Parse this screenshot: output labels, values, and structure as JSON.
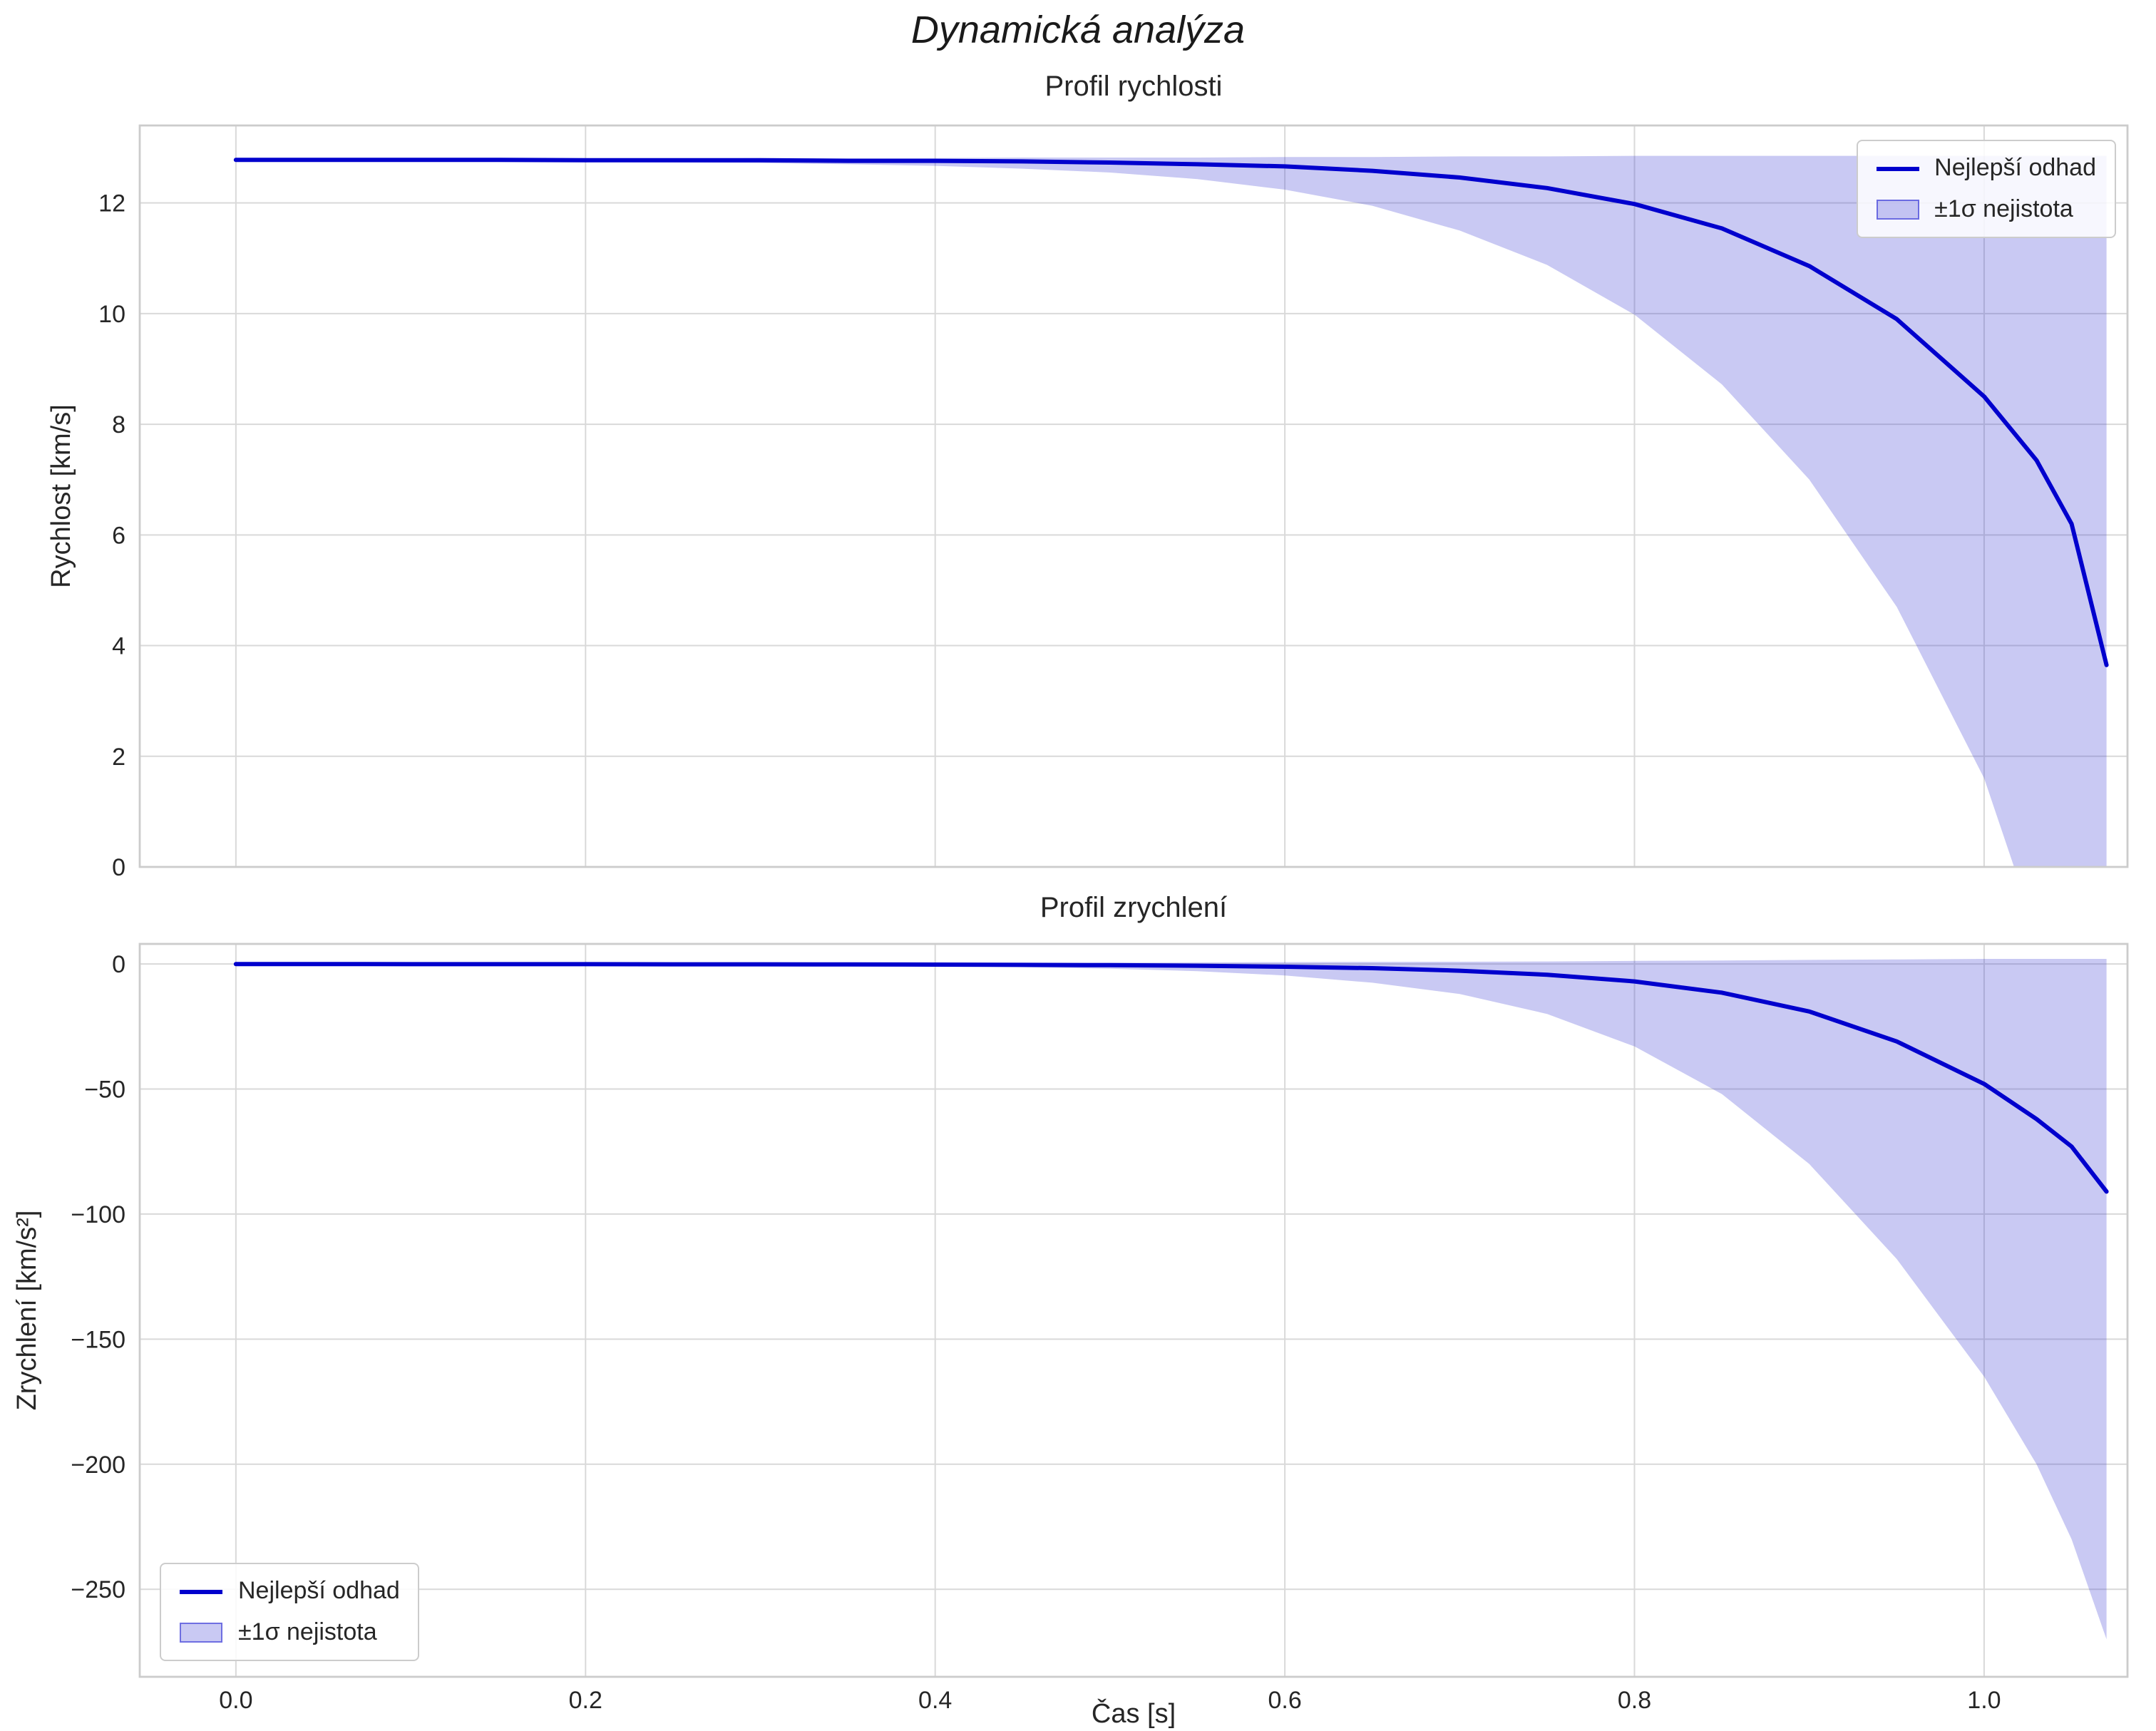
{
  "figure": {
    "title": "Dynamická analýza",
    "xlabel": "Čas [s]"
  },
  "colors": {
    "line": "#0000cd",
    "band": "#3d3dd5",
    "grid": "#d9d9d9",
    "frame": "#cccccc",
    "text": "#262626"
  },
  "chart_data": [
    {
      "type": "line",
      "title": "Profil rychlosti",
      "ylabel": "Rychlost [km/s]",
      "xlabel": "",
      "x": [
        0,
        0.05,
        0.1,
        0.15,
        0.2,
        0.25,
        0.3,
        0.35,
        0.4,
        0.45,
        0.5,
        0.55,
        0.6,
        0.65,
        0.7,
        0.75,
        0.8,
        0.85,
        0.9,
        0.95,
        1.0,
        1.03,
        1.05,
        1.07
      ],
      "series": [
        {
          "name": "Nejlepší odhad",
          "values": [
            12.78,
            12.78,
            12.78,
            12.78,
            12.77,
            12.77,
            12.77,
            12.76,
            12.76,
            12.75,
            12.73,
            12.7,
            12.66,
            12.58,
            12.46,
            12.27,
            11.98,
            11.54,
            10.86,
            9.9,
            8.5,
            7.35,
            6.2,
            3.65
          ]
        }
      ],
      "band": {
        "name": "±1σ nejistota",
        "upper": [
          12.8,
          12.8,
          12.8,
          12.8,
          12.8,
          12.8,
          12.81,
          12.81,
          12.81,
          12.82,
          12.82,
          12.82,
          12.83,
          12.83,
          12.84,
          12.84,
          12.85,
          12.85,
          12.85,
          12.85,
          12.85,
          12.85,
          12.85,
          12.85
        ],
        "lower": [
          12.76,
          12.76,
          12.75,
          12.75,
          12.74,
          12.73,
          12.72,
          12.7,
          12.67,
          12.62,
          12.55,
          12.43,
          12.24,
          11.95,
          11.5,
          10.88,
          9.98,
          8.72,
          7.0,
          4.7,
          1.6,
          -1.2,
          -3.2,
          -6.0
        ]
      },
      "xlim": [
        -0.055,
        1.082
      ],
      "ylim": [
        0,
        13.4
      ],
      "xticks": [
        0.0,
        0.2,
        0.4,
        0.6,
        0.8,
        1.0
      ],
      "xtick_labels": [
        "0.0",
        "0.2",
        "0.4",
        "0.6",
        "0.8",
        "1.0"
      ],
      "show_xticklabels": false,
      "yticks": [
        0,
        2,
        4,
        6,
        8,
        10,
        12
      ],
      "ytick_labels": [
        "0",
        "2",
        "4",
        "6",
        "8",
        "10",
        "12"
      ],
      "grid": true,
      "line_color": "#0000cd",
      "band_color": "#3d3dd5",
      "band_alpha": 0.28,
      "legend": {
        "position": "upper right",
        "items": [
          {
            "type": "line",
            "label": "Nejlepší odhad"
          },
          {
            "type": "patch",
            "label": "±1σ nejistota"
          }
        ]
      }
    },
    {
      "type": "line",
      "title": "Profil zrychlení",
      "ylabel": "Zrychlení [km/s²]",
      "xlabel": "Čas [s]",
      "x": [
        0,
        0.05,
        0.1,
        0.15,
        0.2,
        0.25,
        0.3,
        0.35,
        0.4,
        0.45,
        0.5,
        0.55,
        0.6,
        0.65,
        0.7,
        0.75,
        0.8,
        0.85,
        0.9,
        0.95,
        1.0,
        1.03,
        1.05,
        1.07
      ],
      "series": [
        {
          "name": "Nejlepší odhad",
          "values": [
            -0.05,
            -0.06,
            -0.07,
            -0.08,
            -0.1,
            -0.13,
            -0.16,
            -0.21,
            -0.28,
            -0.38,
            -0.52,
            -0.74,
            -1.1,
            -1.7,
            -2.7,
            -4.3,
            -7.0,
            -11.5,
            -19,
            -31,
            -48,
            -62,
            -73,
            -91
          ]
        }
      ],
      "band": {
        "name": "±1σ nejistota",
        "upper": [
          0.3,
          0.3,
          0.3,
          0.3,
          0.3,
          0.3,
          0.3,
          0.4,
          0.4,
          0.5,
          0.5,
          0.6,
          0.7,
          0.8,
          0.9,
          1.0,
          1.2,
          1.4,
          1.6,
          1.8,
          2.0,
          2.0,
          2.0,
          2.0
        ],
        "lower": [
          -0.1,
          -0.12,
          -0.15,
          -0.19,
          -0.25,
          -0.33,
          -0.45,
          -0.63,
          -0.9,
          -1.3,
          -1.9,
          -2.9,
          -4.6,
          -7.5,
          -12,
          -20,
          -33,
          -52,
          -80,
          -118,
          -165,
          -200,
          -230,
          -270
        ]
      },
      "xlim": [
        -0.055,
        1.082
      ],
      "ylim": [
        -285,
        8
      ],
      "xticks": [
        0.0,
        0.2,
        0.4,
        0.6,
        0.8,
        1.0
      ],
      "xtick_labels": [
        "0.0",
        "0.2",
        "0.4",
        "0.6",
        "0.8",
        "1.0"
      ],
      "show_xticklabels": true,
      "yticks": [
        0,
        -50,
        -100,
        -150,
        -200,
        -250
      ],
      "ytick_labels": [
        "0",
        "−50",
        "−100",
        "−150",
        "−200",
        "−250"
      ],
      "grid": true,
      "line_color": "#0000cd",
      "band_color": "#3d3dd5",
      "band_alpha": 0.28,
      "legend": {
        "position": "lower left",
        "items": [
          {
            "type": "line",
            "label": "Nejlepší odhad"
          },
          {
            "type": "patch",
            "label": "±1σ nejistota"
          }
        ]
      }
    }
  ]
}
